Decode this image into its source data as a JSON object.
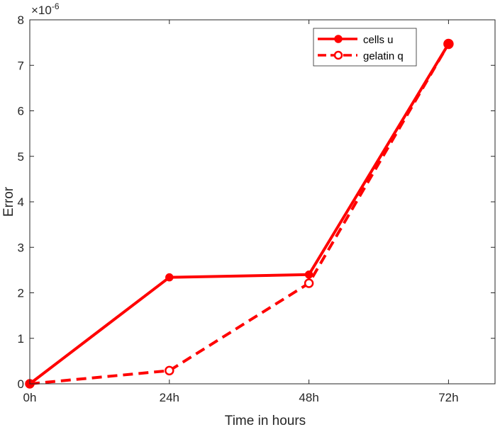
{
  "chart_data": {
    "type": "line",
    "x_tick_labels": [
      "0h",
      "24h",
      "48h",
      "72h"
    ],
    "x": [
      0,
      24,
      48,
      72
    ],
    "xlim": [
      0,
      80
    ],
    "ylim": [
      0,
      8
    ],
    "y_ticks": [
      0,
      1,
      2,
      3,
      4,
      5,
      6,
      7,
      8
    ],
    "y_exponent_label": "×10",
    "y_exponent_power": "-6",
    "xlabel": "Time in hours",
    "ylabel": "Error",
    "grid": false,
    "legend_position": "top-right",
    "series": [
      {
        "name": "cells u",
        "values": [
          0.0,
          2.34,
          2.4,
          7.47
        ],
        "color": "#ff0000",
        "line": "solid",
        "marker": "filled-circle"
      },
      {
        "name": "gelatin q",
        "values": [
          0.0,
          0.29,
          2.21,
          7.47
        ],
        "color": "#ff0000",
        "line": "dashed",
        "marker": "open-circle"
      }
    ]
  }
}
